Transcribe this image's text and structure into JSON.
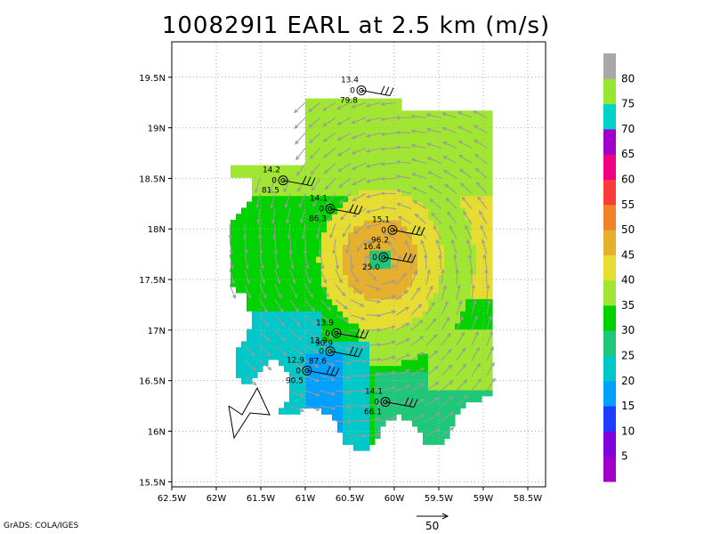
{
  "title": "100829I1 EARL at 2.5 km (m/s)",
  "credit": "GrADS: COLA/IGES",
  "vector_scale": {
    "label": "50"
  },
  "colors": {
    "frame": "#000000",
    "grid": "#aaaaaa",
    "vector": "#9a9a9a",
    "barb": "#000000"
  },
  "chart_data": {
    "type": "heatmap",
    "title": "100829I1 EARL at 2.5 km (m/s)",
    "xlim": [
      -62.5,
      -58.3
    ],
    "ylim": [
      15.45,
      19.85
    ],
    "x_ticks": [
      -62.5,
      -62,
      -61.5,
      -61,
      -60.5,
      -60,
      -59.5,
      -59,
      -58.5
    ],
    "x_tick_labels": [
      "62.5W",
      "62W",
      "61.5W",
      "61W",
      "60.5W",
      "60W",
      "59.5W",
      "59W",
      "58.5W"
    ],
    "y_ticks": [
      15.5,
      16,
      16.5,
      17,
      17.5,
      18,
      18.5,
      19,
      19.5
    ],
    "y_tick_labels": [
      "15.5N",
      "16N",
      "16.5N",
      "17N",
      "17.5N",
      "18N",
      "18.5N",
      "19N",
      "19.5N"
    ],
    "grid": true,
    "colorbar": {
      "labels": [
        "5",
        "10",
        "15",
        "20",
        "25",
        "30",
        "35",
        "40",
        "45",
        "50",
        "55",
        "60",
        "65",
        "70",
        "75",
        "80"
      ],
      "colors": [
        "#a000c8",
        "#8200dc",
        "#1e3cff",
        "#00a0ff",
        "#00c8c8",
        "#1ec878",
        "#00d200",
        "#a0e632",
        "#e6dc32",
        "#e6af2d",
        "#f08228",
        "#fa3c3c",
        "#f00082",
        "#a000c8",
        "#00d2c8",
        "#96e632",
        "#a8a8a8"
      ]
    },
    "center": {
      "lon": -60.15,
      "lat": 17.7
    },
    "wind_field": [
      {
        "level": 30,
        "ring_r": 1.5
      },
      {
        "level": 35,
        "ring_r": 1.05
      },
      {
        "level": 40,
        "ring_r": 0.65
      },
      {
        "level": 45,
        "ring_r": 0.38
      }
    ],
    "eye": {
      "level": 25
    },
    "observations": [
      {
        "lon": -60.37,
        "lat": 19.37,
        "label_top": "13.4",
        "label_mid": "0",
        "label_bot": "79.8"
      },
      {
        "lon": -61.25,
        "lat": 18.48,
        "label_top": "14.2",
        "label_mid": "0",
        "label_bot": "81.5"
      },
      {
        "lon": -60.72,
        "lat": 18.2,
        "label_top": "14.1",
        "label_mid": "0",
        "label_bot": "86.3"
      },
      {
        "lon": -60.02,
        "lat": 17.99,
        "label_top": "15.1",
        "label_mid": "0",
        "label_bot": "96.2"
      },
      {
        "lon": -60.12,
        "lat": 17.72,
        "label_top": "16.4",
        "label_mid": "0",
        "label_bot": "25.0"
      },
      {
        "lon": -60.65,
        "lat": 16.97,
        "label_top": "13.9",
        "label_mid": "0",
        "label_bot": "90.9"
      },
      {
        "lon": -60.72,
        "lat": 16.79,
        "label_top": "13.9",
        "label_mid": "0",
        "label_bot": "87.6"
      },
      {
        "lon": -60.98,
        "lat": 16.6,
        "label_top": "12.9",
        "label_mid": "0",
        "label_bot": "90.5"
      },
      {
        "lon": -60.1,
        "lat": 16.29,
        "label_top": "14.1",
        "label_mid": "0",
        "label_bot": "66.1"
      }
    ]
  }
}
